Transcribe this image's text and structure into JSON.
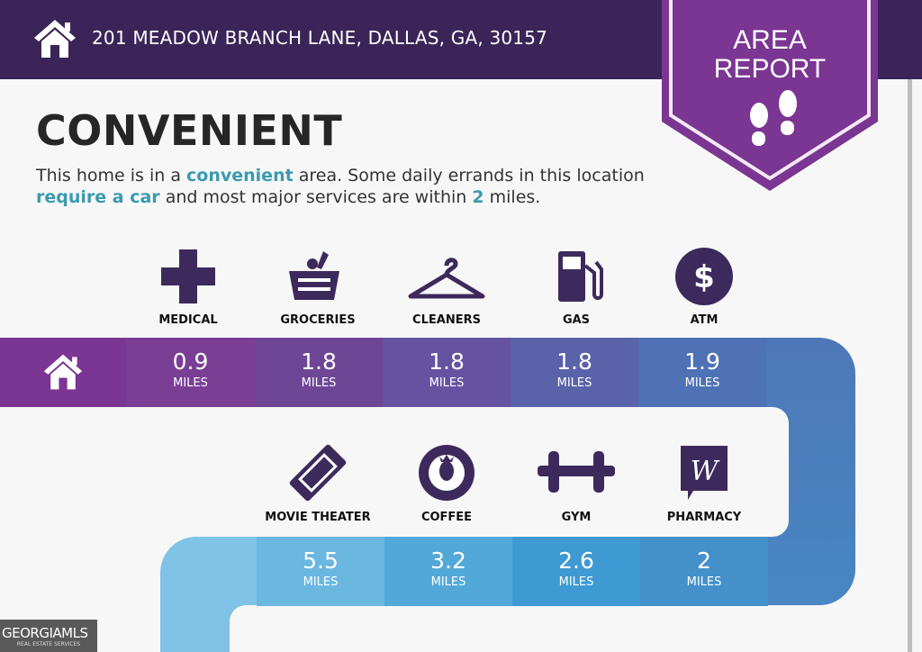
{
  "header": {
    "address": "201 MEADOW BRANCH LANE, DALLAS, GA, 30157",
    "home_icon": "home-icon"
  },
  "badge": {
    "line1": "AREA",
    "line2": "REPORT",
    "icon": "footprints-icon"
  },
  "summary": {
    "title": "CONVENIENT",
    "desc_parts": [
      "This home is in a ",
      "convenient",
      " area. Some daily errands in this location ",
      "require a car",
      " and most major services are within ",
      "2",
      " miles."
    ]
  },
  "row1": [
    {
      "label": "MEDICAL",
      "value": "0.9",
      "unit": "MILES",
      "icon": "medical-cross-icon"
    },
    {
      "label": "GROCERIES",
      "value": "1.8",
      "unit": "MILES",
      "icon": "grocery-basket-icon"
    },
    {
      "label": "CLEANERS",
      "value": "1.8",
      "unit": "MILES",
      "icon": "hanger-icon"
    },
    {
      "label": "GAS",
      "value": "1.8",
      "unit": "MILES",
      "icon": "gas-pump-icon"
    },
    {
      "label": "ATM",
      "value": "1.9",
      "unit": "MILES",
      "icon": "dollar-icon"
    }
  ],
  "row2": [
    {
      "label": "MOVIE THEATER",
      "value": "5.5",
      "unit": "MILES",
      "icon": "ticket-icon"
    },
    {
      "label": "COFFEE",
      "value": "3.2",
      "unit": "MILES",
      "icon": "coffee-logo-icon"
    },
    {
      "label": "GYM",
      "value": "2.6",
      "unit": "MILES",
      "icon": "dumbbell-icon"
    },
    {
      "label": "PHARMACY",
      "value": "2",
      "unit": "MILES",
      "icon": "pharmacy-logo-icon"
    }
  ],
  "watermark": {
    "brand": "GEORGIAMLS",
    "sub": "REAL ESTATE SERVICES"
  },
  "colors": {
    "header": "#3b2458",
    "badge": "#7b3592",
    "accent": "#3a9ab0",
    "icon": "#3d2a5c"
  }
}
